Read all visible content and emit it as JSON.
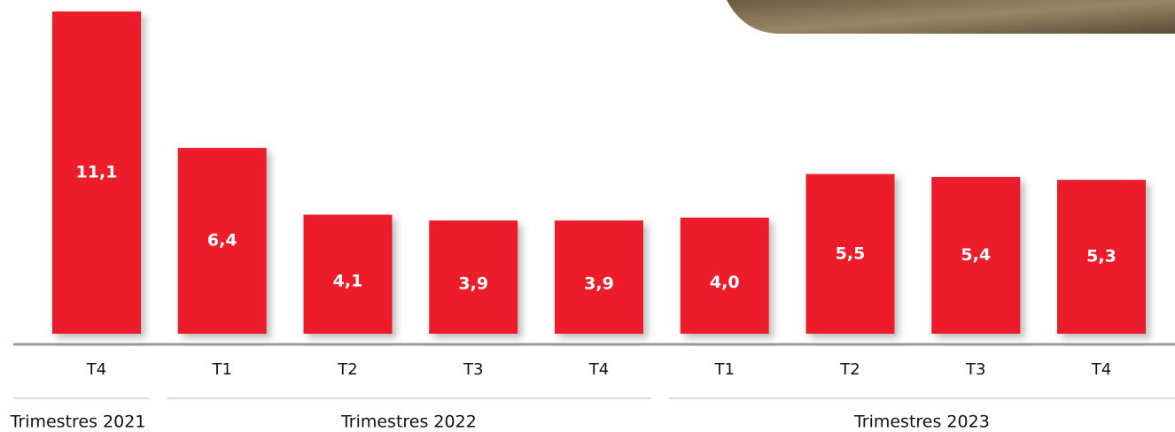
{
  "chart_data": {
    "type": "bar",
    "color": "#ed1c2a",
    "groups": [
      {
        "label": "Trimestres 2021",
        "categories": [
          "T4"
        ],
        "values": [
          11.1
        ],
        "value_labels": [
          "11,1"
        ]
      },
      {
        "label": "Trimestres 2022",
        "categories": [
          "T1",
          "T2",
          "T3",
          "T4"
        ],
        "values": [
          6.4,
          4.1,
          3.9,
          3.9
        ],
        "value_labels": [
          "6,4",
          "4,1",
          "3,9",
          "3,9"
        ]
      },
      {
        "label": "Trimestres 2023",
        "categories": [
          "T1",
          "T2",
          "T3",
          "T4"
        ],
        "values": [
          4.0,
          5.5,
          5.4,
          5.3
        ],
        "value_labels": [
          "4,0",
          "5,5",
          "5,4",
          "5,3"
        ]
      }
    ]
  }
}
